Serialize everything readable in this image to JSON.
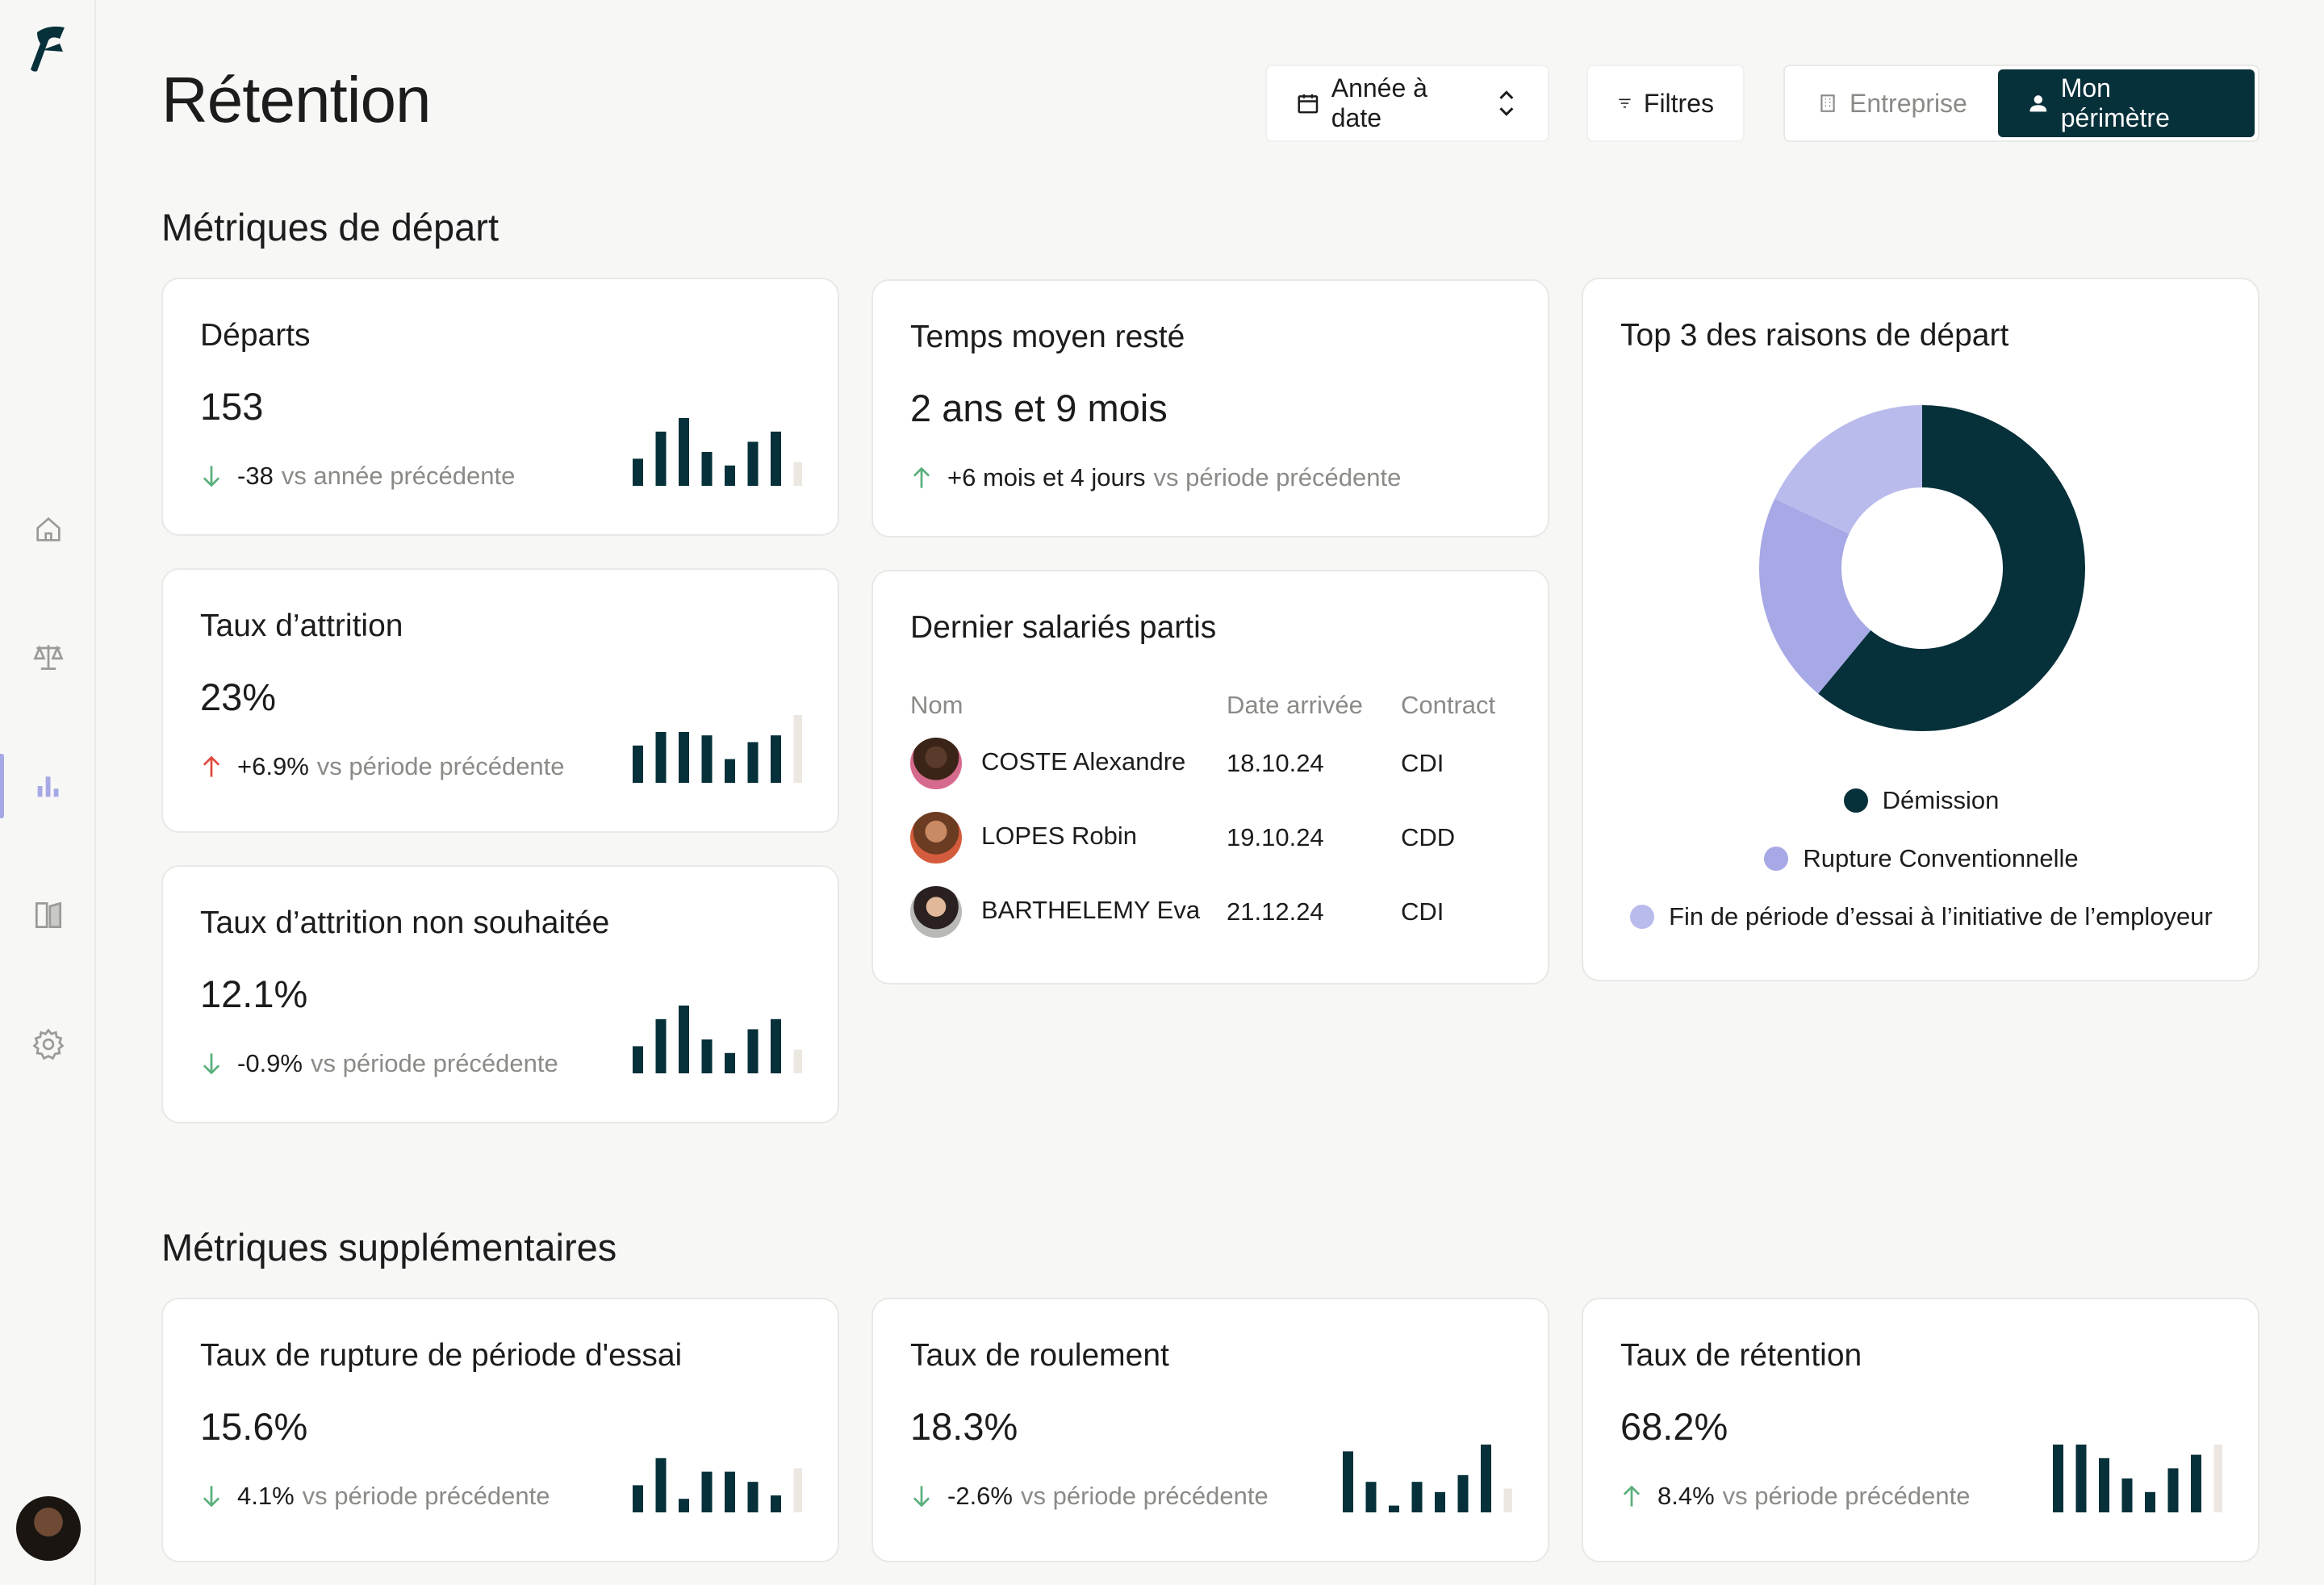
{
  "page": {
    "title": "Rétention"
  },
  "toolbar": {
    "date_label": "Année à date",
    "filters_label": "Filtres",
    "scope": [
      {
        "label": "Entreprise",
        "active": false
      },
      {
        "label": "Mon périmètre",
        "active": true
      }
    ]
  },
  "sidebar": {
    "items": [
      {
        "name": "home-icon"
      },
      {
        "name": "scale-icon"
      },
      {
        "name": "bar-chart-icon",
        "active": true
      },
      {
        "name": "book-icon"
      },
      {
        "name": "gear-icon"
      }
    ]
  },
  "sections": {
    "departure": "Métriques de départ",
    "additional": "Métriques supplémentaires"
  },
  "cards": {
    "departs": {
      "title": "Départs",
      "value": "153",
      "delta": "-38",
      "sub": "vs année précédente",
      "trend": "down",
      "bars": [
        0.4,
        0.8,
        1.0,
        0.5,
        0.3,
        0.65,
        0.8,
        0.35
      ]
    },
    "temps": {
      "title": "Temps moyen resté",
      "value": "2 ans et 9 mois",
      "delta": "+6 mois et 4 jours",
      "sub": "vs période précédente",
      "trend": "up"
    },
    "attrition": {
      "title": "Taux d’attrition",
      "value": "23%",
      "delta": "+6.9%",
      "sub": "vs période précédente",
      "trend": "up-red",
      "bars": [
        0.55,
        0.75,
        0.75,
        0.7,
        0.35,
        0.6,
        0.7,
        1.0
      ]
    },
    "non_souhaitee": {
      "title": "Taux d’attrition non souhaitée",
      "value": "12.1%",
      "delta": "-0.9%",
      "sub": "vs période précédente",
      "trend": "down",
      "bars": [
        0.4,
        0.8,
        1.0,
        0.5,
        0.3,
        0.65,
        0.8,
        0.35
      ]
    },
    "rupture": {
      "title": "Taux de rupture de période d'essai",
      "value": "15.6%",
      "delta": "4.1%",
      "sub": "vs période précédente",
      "trend": "down",
      "bars": [
        0.4,
        0.8,
        0.2,
        0.6,
        0.6,
        0.45,
        0.25,
        0.65
      ]
    },
    "roulement": {
      "title": "Taux de roulement",
      "value": "18.3%",
      "delta": "-2.6%",
      "sub": "vs période précédente",
      "trend": "down",
      "bars": [
        0.9,
        0.45,
        0.1,
        0.45,
        0.3,
        0.55,
        1.0,
        0.35
      ]
    },
    "retention": {
      "title": "Taux de rétention",
      "value": "68.2%",
      "delta": "8.4%",
      "sub": "vs période précédente",
      "trend": "up",
      "bars": [
        1.0,
        1.0,
        0.8,
        0.5,
        0.3,
        0.65,
        0.85,
        1.0
      ]
    }
  },
  "employees": {
    "title": "Dernier salariés partis",
    "headers": [
      "Nom",
      "Date arrivée",
      "Contract"
    ],
    "rows": [
      {
        "name": "COSTE Alexandre",
        "date": "18.10.24",
        "contract": "CDI"
      },
      {
        "name": "LOPES Robin",
        "date": "19.10.24",
        "contract": "CDD"
      },
      {
        "name": "BARTHELEMY Eva",
        "date": "21.12.24",
        "contract": "CDI"
      }
    ]
  },
  "reasons": {
    "title": "Top 3 des raisons de départ",
    "chart_data": {
      "type": "pie",
      "slices": [
        {
          "label": "Démission",
          "value": 61,
          "color": "#06303a"
        },
        {
          "label": "Rupture Conventionnelle",
          "value": 21,
          "color": "#a7a8e6"
        },
        {
          "label": "Fin de période d’essai à l’initiative de l’employeur",
          "value": 18,
          "color": "#b9bbec"
        }
      ]
    }
  },
  "colors": {
    "accent": "#06303a",
    "up": "#5bb07c",
    "down_red": "#e0493d",
    "bar_last": "#ece7e1"
  }
}
